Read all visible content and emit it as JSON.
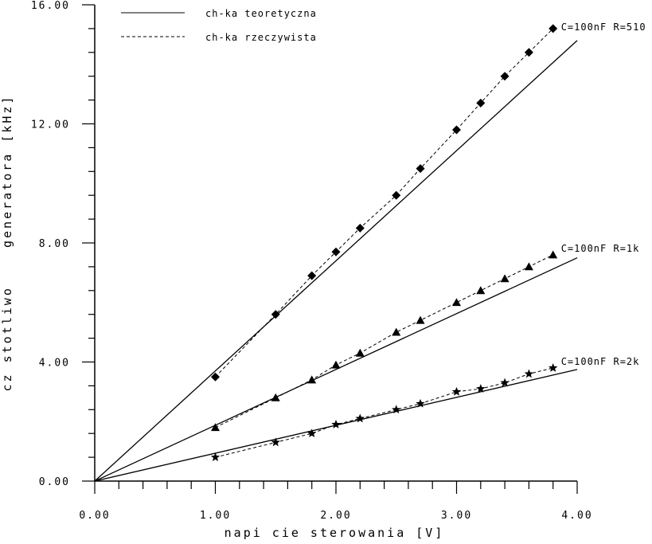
{
  "chart_data": {
    "type": "line",
    "xlabel": "napi cie sterowania [V]",
    "ylabel": "cz stotliwo    generatora [kHz]",
    "xlim": [
      0,
      4
    ],
    "ylim": [
      0,
      16
    ],
    "x_ticks": [
      "0.00",
      "1.00",
      "2.00",
      "3.00",
      "4.00"
    ],
    "y_ticks": [
      "0.00",
      "4.00",
      "8.00",
      "12.00",
      "16.00"
    ],
    "x_minor_step": 0.2,
    "y_minor_step": 0.8,
    "grid": false,
    "legend_position": "top-left",
    "legend": [
      {
        "label": "ch-ka teoretyczna",
        "style": "solid"
      },
      {
        "label": "ch-ka rzeczywista",
        "style": "dashed"
      }
    ],
    "series": [
      {
        "name": "C=100nF R=510",
        "marker": "diamond",
        "theoretical": [
          [
            0,
            0
          ],
          [
            4.0,
            14.8
          ]
        ],
        "x": [
          1.0,
          1.5,
          1.8,
          2.0,
          2.2,
          2.5,
          2.7,
          3.0,
          3.2,
          3.4,
          3.6,
          3.8
        ],
        "y": [
          3.5,
          5.6,
          6.9,
          7.7,
          8.5,
          9.6,
          10.5,
          11.8,
          12.7,
          13.6,
          14.4,
          15.2
        ]
      },
      {
        "name": "C=100nF R=1k",
        "marker": "triangle",
        "theoretical": [
          [
            0,
            0
          ],
          [
            4.0,
            7.5
          ]
        ],
        "x": [
          1.0,
          1.5,
          1.8,
          2.0,
          2.2,
          2.5,
          2.7,
          3.0,
          3.2,
          3.4,
          3.6,
          3.8
        ],
        "y": [
          1.8,
          2.8,
          3.4,
          3.9,
          4.3,
          5.0,
          5.4,
          6.0,
          6.4,
          6.8,
          7.2,
          7.6
        ]
      },
      {
        "name": "C=100nF R=2k",
        "marker": "star",
        "theoretical": [
          [
            0,
            0
          ],
          [
            4.0,
            3.75
          ]
        ],
        "x": [
          1.0,
          1.5,
          1.8,
          2.0,
          2.2,
          2.5,
          2.7,
          3.0,
          3.2,
          3.4,
          3.6,
          3.8
        ],
        "y": [
          0.8,
          1.3,
          1.6,
          1.9,
          2.1,
          2.4,
          2.6,
          3.0,
          3.1,
          3.3,
          3.6,
          3.8
        ]
      }
    ]
  }
}
